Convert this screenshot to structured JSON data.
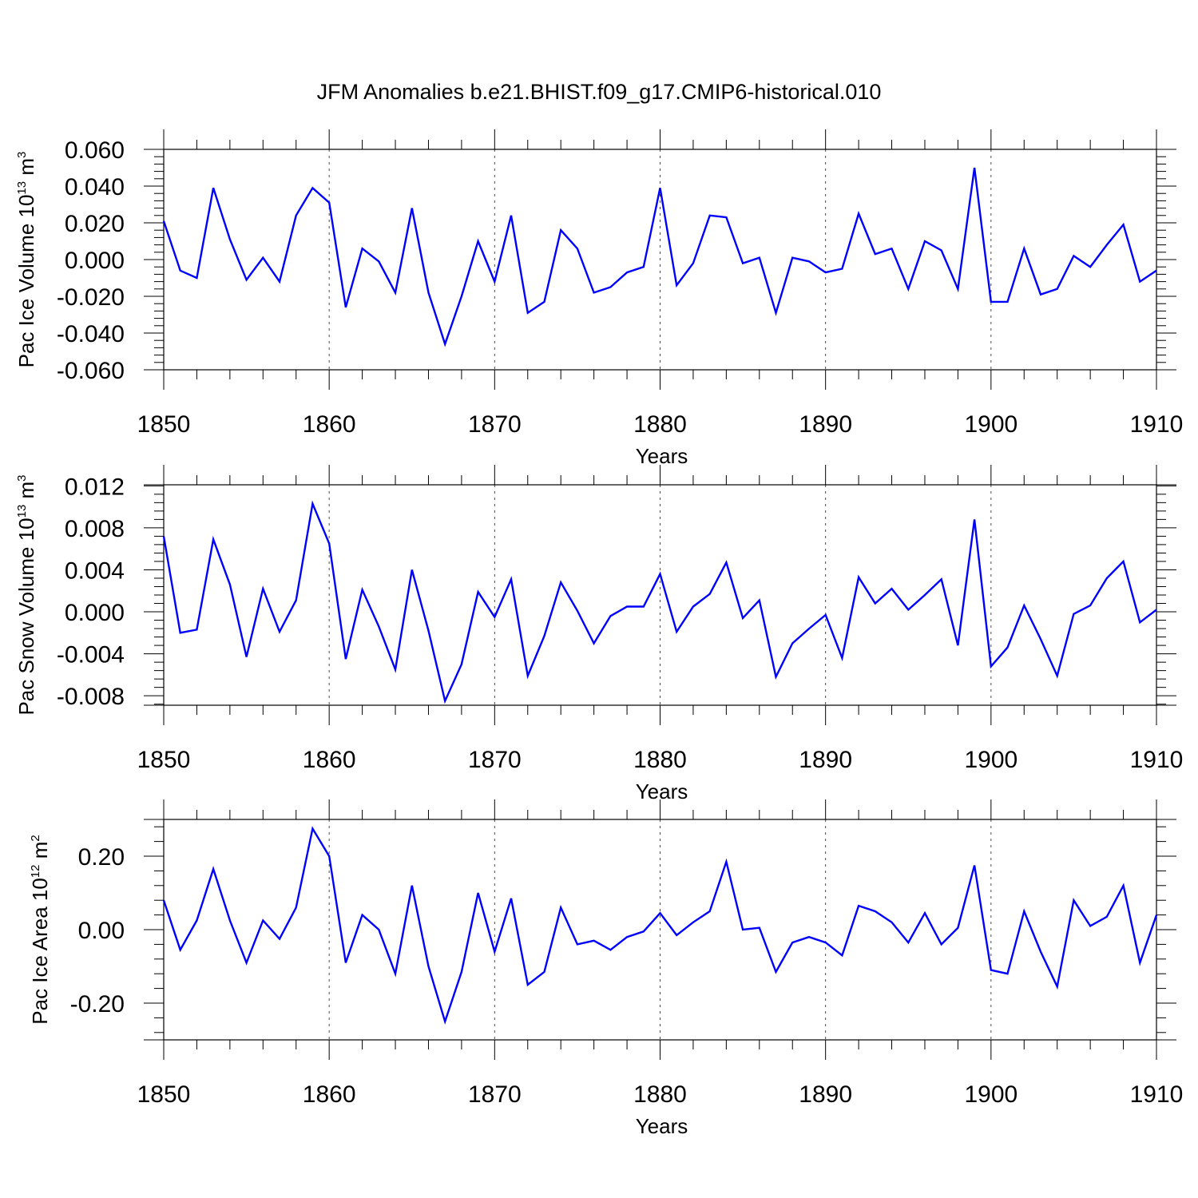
{
  "figure": {
    "title": "JFM Anomalies b.e21.BHIST.f09_g17.CMIP6-historical.010"
  },
  "colors": {
    "line": "#0000ff",
    "axes": "#000000",
    "background": "#ffffff"
  },
  "chart_data": [
    {
      "type": "line",
      "title": "",
      "xlabel": "Years",
      "ylabel": "Pac Ice Volume 10",
      "ylabel_exp": "13",
      "ylabel_unit": " m",
      "ylabel_unit_exp": "3",
      "xlim": [
        1850,
        1910
      ],
      "ylim": [
        -0.06,
        0.06
      ],
      "plot_ylim": [
        -0.06,
        0.06
      ],
      "xticks": [
        "1850",
        "1860",
        "1870",
        "1880",
        "1890",
        "1900",
        "1910"
      ],
      "yticks": [
        "0.060",
        "0.040",
        "0.020",
        "0.000",
        "-0.020",
        "-0.040",
        "-0.060"
      ],
      "ytick_values": [
        0.06,
        0.04,
        0.02,
        0.0,
        -0.02,
        -0.04,
        -0.06
      ],
      "grid_x": [
        1860,
        1870,
        1880,
        1890,
        1900
      ],
      "x": [
        1850,
        1851,
        1852,
        1853,
        1854,
        1855,
        1856,
        1857,
        1858,
        1859,
        1860,
        1861,
        1862,
        1863,
        1864,
        1865,
        1866,
        1867,
        1868,
        1869,
        1870,
        1871,
        1872,
        1873,
        1874,
        1875,
        1876,
        1877,
        1878,
        1879,
        1880,
        1881,
        1882,
        1883,
        1884,
        1885,
        1886,
        1887,
        1888,
        1889,
        1890,
        1891,
        1892,
        1893,
        1894,
        1895,
        1896,
        1897,
        1898,
        1899,
        1900,
        1901,
        1902,
        1903,
        1904,
        1905,
        1906,
        1907,
        1908,
        1909,
        1910
      ],
      "values": [
        0.021,
        -0.006,
        -0.01,
        0.039,
        0.011,
        -0.011,
        0.001,
        -0.012,
        0.024,
        0.039,
        0.031,
        -0.026,
        0.006,
        -0.001,
        -0.018,
        0.028,
        -0.018,
        -0.046,
        -0.02,
        0.01,
        -0.012,
        0.024,
        -0.029,
        -0.023,
        0.016,
        0.006,
        -0.018,
        -0.015,
        -0.007,
        -0.004,
        0.039,
        -0.014,
        -0.002,
        0.024,
        0.023,
        -0.002,
        0.001,
        -0.029,
        0.001,
        -0.001,
        -0.007,
        -0.005,
        0.025,
        0.003,
        0.006,
        -0.016,
        0.01,
        0.005,
        -0.016,
        0.05,
        -0.023,
        -0.023,
        0.006,
        -0.019,
        -0.016,
        0.002,
        -0.004,
        0.008,
        0.019,
        -0.012,
        -0.006
      ]
    },
    {
      "type": "line",
      "title": "",
      "xlabel": "Years",
      "ylabel": "Pac Snow Volume 10",
      "ylabel_exp": "13",
      "ylabel_unit": " m",
      "ylabel_unit_exp": "3",
      "xlim": [
        1850,
        1910
      ],
      "ylim": [
        -0.0089,
        0.0121
      ],
      "plot_ylim": [
        -0.0089,
        0.0121
      ],
      "xticks": [
        "1850",
        "1860",
        "1870",
        "1880",
        "1890",
        "1900",
        "1910"
      ],
      "yticks": [
        "0.012",
        "0.008",
        "0.004",
        "0.000",
        "-0.004",
        "-0.008"
      ],
      "ytick_values": [
        0.012,
        0.008,
        0.004,
        0.0,
        -0.004,
        -0.008
      ],
      "grid_x": [
        1860,
        1870,
        1880,
        1890,
        1900
      ],
      "x": [
        1850,
        1851,
        1852,
        1853,
        1854,
        1855,
        1856,
        1857,
        1858,
        1859,
        1860,
        1861,
        1862,
        1863,
        1864,
        1865,
        1866,
        1867,
        1868,
        1869,
        1870,
        1871,
        1872,
        1873,
        1874,
        1875,
        1876,
        1877,
        1878,
        1879,
        1880,
        1881,
        1882,
        1883,
        1884,
        1885,
        1886,
        1887,
        1888,
        1889,
        1890,
        1891,
        1892,
        1893,
        1894,
        1895,
        1896,
        1897,
        1898,
        1899,
        1900,
        1901,
        1902,
        1903,
        1904,
        1905,
        1906,
        1907,
        1908,
        1909,
        1910
      ],
      "values": [
        0.0072,
        -0.002,
        -0.0017,
        0.0069,
        0.0026,
        -0.0043,
        0.0022,
        -0.0019,
        0.0011,
        0.0103,
        0.0065,
        -0.0045,
        0.0021,
        -0.0014,
        -0.0055,
        0.004,
        -0.0018,
        -0.0085,
        -0.005,
        0.0019,
        -0.0005,
        0.0031,
        -0.0061,
        -0.0023,
        0.0028,
        0.0001,
        -0.003,
        -0.0004,
        0.0005,
        0.0005,
        0.0036,
        -0.0019,
        0.0005,
        0.0017,
        0.0047,
        -0.0006,
        0.0011,
        -0.0062,
        -0.003,
        -0.0016,
        -0.0003,
        -0.0044,
        0.0033,
        0.0008,
        0.0022,
        0.0002,
        0.0016,
        0.0031,
        -0.0032,
        0.0088,
        -0.0052,
        -0.0034,
        0.0006,
        -0.0026,
        -0.0061,
        -0.0002,
        0.0006,
        0.0032,
        0.0048,
        -0.001,
        0.0002
      ]
    },
    {
      "type": "line",
      "title": "",
      "xlabel": "Years",
      "ylabel": "Pac Ice Area 10",
      "ylabel_exp": "12",
      "ylabel_unit": " m",
      "ylabel_unit_exp": "2",
      "xlim": [
        1850,
        1910
      ],
      "ylim": [
        -0.3,
        0.3
      ],
      "plot_ylim": [
        -0.3,
        0.3
      ],
      "xticks": [
        "1850",
        "1860",
        "1870",
        "1880",
        "1890",
        "1900",
        "1910"
      ],
      "yticks": [
        "0.20",
        "0.00",
        "-0.20"
      ],
      "ytick_values": [
        0.2,
        0.0,
        -0.2
      ],
      "grid_x": [
        1860,
        1870,
        1880,
        1890,
        1900
      ],
      "x": [
        1850,
        1851,
        1852,
        1853,
        1854,
        1855,
        1856,
        1857,
        1858,
        1859,
        1860,
        1861,
        1862,
        1863,
        1864,
        1865,
        1866,
        1867,
        1868,
        1869,
        1870,
        1871,
        1872,
        1873,
        1874,
        1875,
        1876,
        1877,
        1878,
        1879,
        1880,
        1881,
        1882,
        1883,
        1884,
        1885,
        1886,
        1887,
        1888,
        1889,
        1890,
        1891,
        1892,
        1893,
        1894,
        1895,
        1896,
        1897,
        1898,
        1899,
        1900,
        1901,
        1902,
        1903,
        1904,
        1905,
        1906,
        1907,
        1908,
        1909,
        1910
      ],
      "values": [
        0.08,
        -0.055,
        0.025,
        0.165,
        0.025,
        -0.09,
        0.025,
        -0.025,
        0.06,
        0.275,
        0.2,
        -0.09,
        0.04,
        0.0,
        -0.12,
        0.12,
        -0.1,
        -0.25,
        -0.115,
        0.1,
        -0.06,
        0.085,
        -0.15,
        -0.115,
        0.06,
        -0.04,
        -0.03,
        -0.055,
        -0.02,
        -0.005,
        0.045,
        -0.015,
        0.02,
        0.05,
        0.185,
        0.0,
        0.005,
        -0.115,
        -0.035,
        -0.02,
        -0.035,
        -0.07,
        0.065,
        0.05,
        0.02,
        -0.035,
        0.045,
        -0.04,
        0.005,
        0.175,
        -0.11,
        -0.12,
        0.05,
        -0.06,
        -0.155,
        0.08,
        0.01,
        0.035,
        0.12,
        -0.09,
        0.04
      ]
    }
  ]
}
